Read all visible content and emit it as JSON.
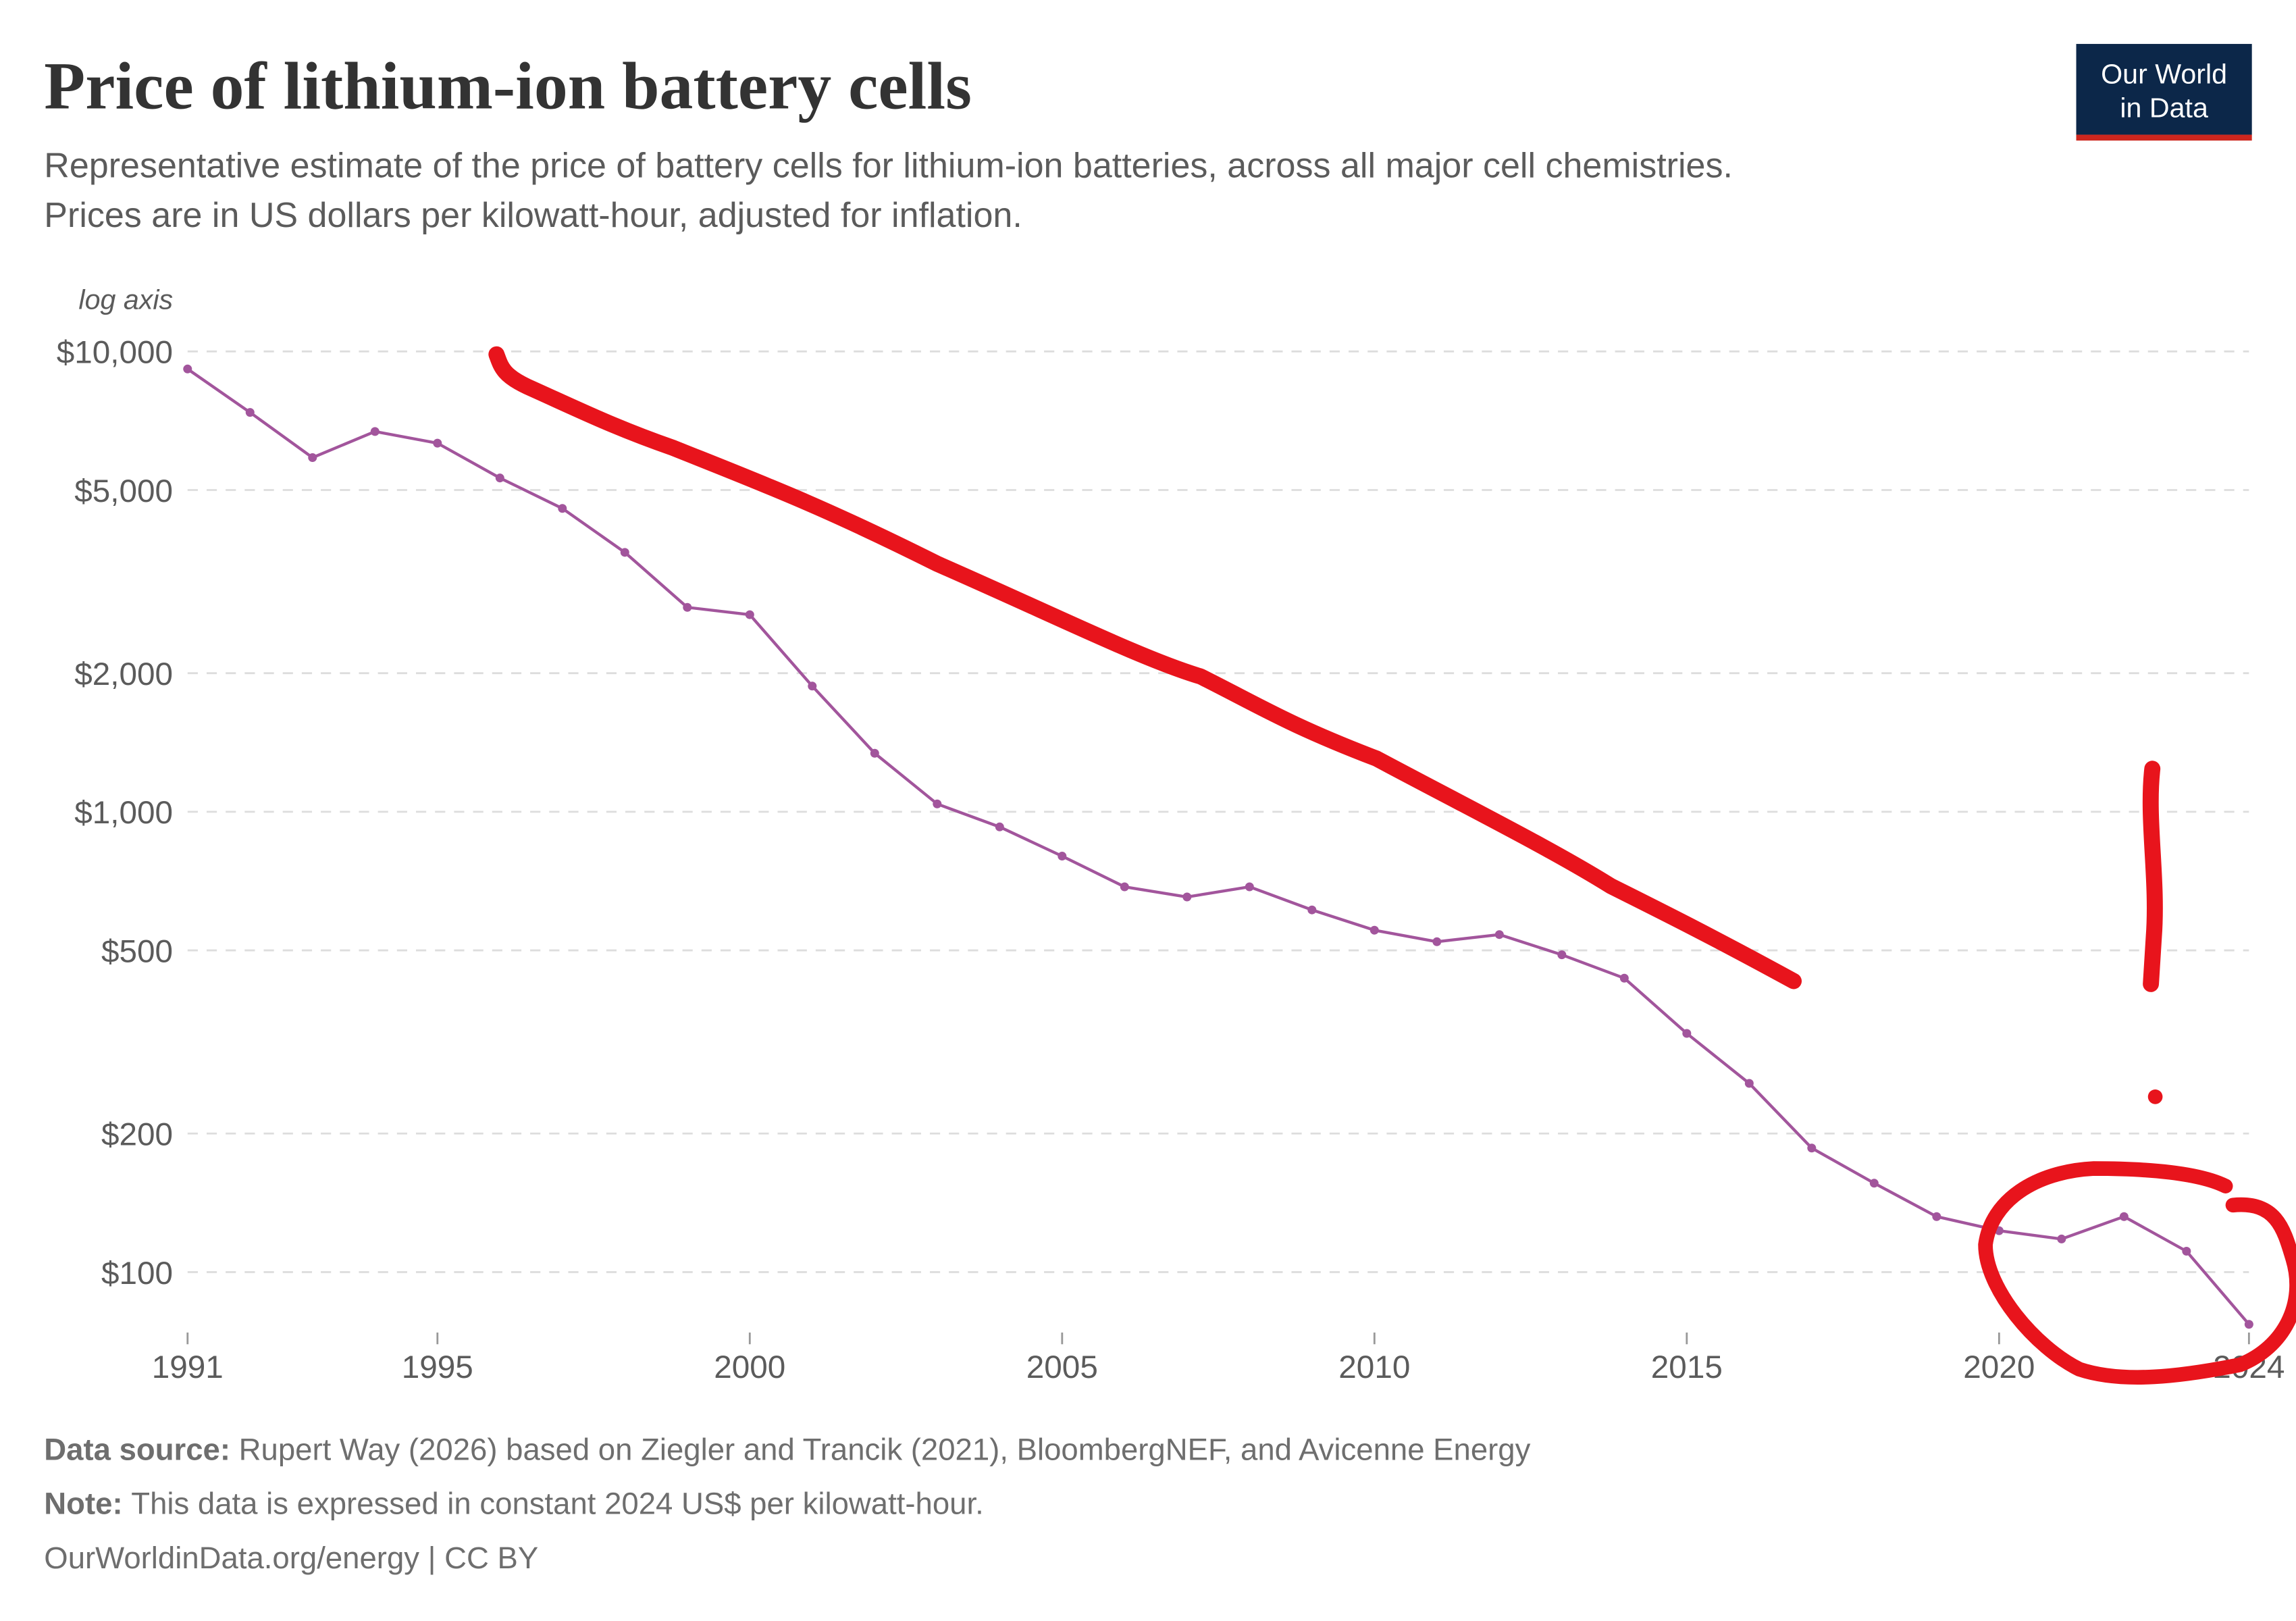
{
  "header": {
    "title": "Price of lithium-ion battery cells",
    "subtitle": [
      "Representative estimate of the price of battery cells for lithium-ion batteries, across all major cell chemistries.",
      "Prices are in US dollars per kilowatt-hour, adjusted for inflation."
    ],
    "logo": [
      "Our World",
      "in Data"
    ]
  },
  "chart_data": {
    "type": "line",
    "yscale": "log",
    "yscale_label": "log axis",
    "grid": true,
    "color": "#a2559c",
    "x": [
      1991,
      1992,
      1993,
      1994,
      1995,
      1996,
      1997,
      1998,
      1999,
      2000,
      2001,
      2002,
      2003,
      2004,
      2005,
      2006,
      2007,
      2008,
      2009,
      2010,
      2011,
      2012,
      2013,
      2014,
      2015,
      2016,
      2017,
      2018,
      2019,
      2020,
      2021,
      2022,
      2023,
      2024
    ],
    "values": [
      9160,
      7370,
      5880,
      6700,
      6320,
      5310,
      4560,
      3660,
      2780,
      2680,
      1875,
      1340,
      1040,
      927,
      801,
      687,
      653,
      687,
      612,
      553,
      522,
      541,
      489,
      435,
      330,
      257,
      186,
      156,
      132,
      123,
      118,
      132,
      111,
      77
    ],
    "xlim": [
      1991,
      2024
    ],
    "xticks": [
      1991,
      1995,
      2000,
      2005,
      2010,
      2015,
      2020,
      2024
    ],
    "ylim": [
      75,
      10000
    ],
    "yticks": [
      {
        "value": 100,
        "label": "$100"
      },
      {
        "value": 200,
        "label": "$200"
      },
      {
        "value": 500,
        "label": "$500"
      },
      {
        "value": 1000,
        "label": "$1,000"
      },
      {
        "value": 2000,
        "label": "$2,000"
      },
      {
        "value": 5000,
        "label": "$5,000"
      },
      {
        "value": 10000,
        "label": "$10,000"
      }
    ]
  },
  "footer": {
    "source_label": "Data source:",
    "source": "Rupert Way (2026) based on Ziegler and Trancik (2021), BloombergNEF, and Avicenne Energy",
    "note_label": "Note:",
    "note": "This data is expressed in constant 2024 US$ per kilowatt-hour.",
    "url": "OurWorldinData.org/energy | CC BY"
  }
}
